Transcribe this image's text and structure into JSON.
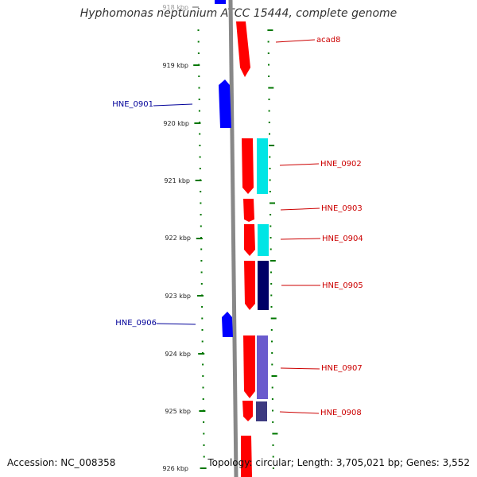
{
  "title": "Hyphomonas neptunium ATCC 15444, complete genome",
  "footer": {
    "accession": "Accession: NC_008358",
    "topology": "Topology: circular; Length: 3,705,021 bp; Genes: 3,552"
  },
  "scale": {
    "unit": "kbp",
    "ticks": [
      "918 kbp",
      "919 kbp",
      "920 kbp",
      "921 kbp",
      "922 kbp",
      "923 kbp",
      "924 kbp",
      "925 kbp",
      "926 kbp"
    ]
  },
  "gene_labels": [
    {
      "name": "acad8",
      "strand": "forward"
    },
    {
      "name": "HNE_0901",
      "strand": "reverse"
    },
    {
      "name": "HNE_0902",
      "strand": "forward"
    },
    {
      "name": "HNE_0903",
      "strand": "forward"
    },
    {
      "name": "HNE_0904",
      "strand": "forward"
    },
    {
      "name": "HNE_0905",
      "strand": "forward"
    },
    {
      "name": "HNE_0906",
      "strand": "reverse"
    },
    {
      "name": "HNE_0907",
      "strand": "forward"
    },
    {
      "name": "HNE_0908",
      "strand": "forward"
    }
  ],
  "colors": {
    "forward_gene": "#ff0000",
    "reverse_gene": "#0000ff",
    "forward_label": "#cc0000",
    "reverse_label": "#000099",
    "backbone": "#888888",
    "tick": "#007700",
    "cds_cyan": "#00e5e5",
    "cds_navy": "#000066",
    "cds_slate": "#6a5acd",
    "cds_darkslate": "#3d3a80"
  }
}
